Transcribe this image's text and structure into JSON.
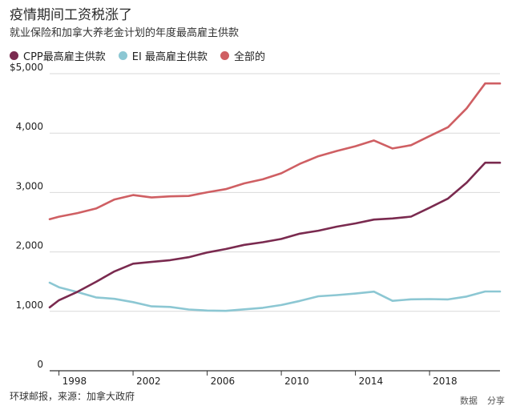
{
  "header": {
    "title": "疫情期间工资税涨了",
    "subtitle": "就业保险和加拿大养老金计划的年度最高雇主供款"
  },
  "footer": {
    "source": "环球邮报，来源：加拿大政府",
    "data_link": "数据",
    "share_link": "分享"
  },
  "chart_data": {
    "type": "line",
    "title": "疫情期间工资税涨了",
    "subtitle": "就业保险和加拿大养老金计划的年度最高雇主供款",
    "xlabel": "",
    "ylabel": "",
    "xlim": [
      1997.5,
      2021.8
    ],
    "ylim": [
      0,
      5000
    ],
    "x_tick_values": [
      1998,
      2002,
      2006,
      2010,
      2014,
      2018
    ],
    "x_tick_labels": [
      "1998",
      "2002",
      "2006",
      "2010",
      "2014",
      "2018"
    ],
    "y_tick_values": [
      0,
      1000,
      2000,
      3000,
      4000,
      5000
    ],
    "y_tick_labels": [
      "0",
      "1,000",
      "2,000",
      "3,000",
      "4,000",
      "$5,000"
    ],
    "grid": "horizontal",
    "legend_position": "top-left",
    "x": [
      1997.5,
      1998,
      1999,
      2000,
      2001,
      2002,
      2003,
      2004,
      2005,
      2006,
      2007,
      2008,
      2009,
      2010,
      2011,
      2012,
      2013,
      2014,
      2015,
      2016,
      2017,
      2018,
      2019,
      2020,
      2021,
      2021.8
    ],
    "series": [
      {
        "name": "CPP最高雇主供款",
        "color": "#7a2a4f",
        "values": [
          1068,
          1187,
          1329,
          1496,
          1673,
          1802,
          1832,
          1861,
          1911,
          1990,
          2049,
          2119,
          2163,
          2218,
          2307,
          2357,
          2426,
          2480,
          2544,
          2564,
          2594,
          2744,
          2899,
          3166,
          3501,
          3501
        ]
      },
      {
        "name": "EI 最高雇主供款",
        "color": "#8cc7d3",
        "values": [
          1483,
          1406,
          1324,
          1235,
          1210,
          1155,
          1084,
          1074,
          1031,
          1014,
          1008,
          1034,
          1059,
          1106,
          1175,
          1253,
          1274,
          1299,
          1332,
          1177,
          1202,
          1206,
          1201,
          1250,
          1334,
          1334
        ]
      },
      {
        "name": "全部的",
        "color": "#cf5f63",
        "values": [
          2551,
          2593,
          2653,
          2731,
          2883,
          2957,
          2916,
          2935,
          2942,
          3004,
          3057,
          3153,
          3222,
          3324,
          3482,
          3610,
          3700,
          3779,
          3876,
          3741,
          3796,
          3950,
          4100,
          4416,
          4835,
          4835
        ]
      }
    ]
  }
}
